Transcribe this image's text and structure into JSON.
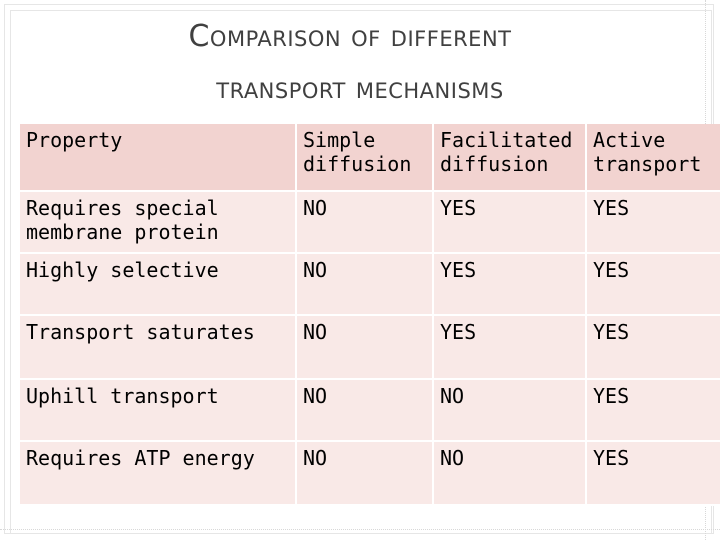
{
  "slide": {
    "title_line1": "Comparison of different",
    "title_line2": "transport mechanisms"
  },
  "table": {
    "headers": [
      "Property",
      "Simple diffusion",
      "Facilitated diffusion",
      "Active transport"
    ],
    "rows": [
      [
        "Requires special membrane protein",
        "NO",
        "YES",
        "YES"
      ],
      [
        "Highly selective",
        "NO",
        "YES",
        "YES"
      ],
      [
        "Transport saturates",
        "NO",
        "YES",
        "YES"
      ],
      [
        "Uphill transport",
        "NO",
        "NO",
        "YES"
      ],
      [
        "Requires ATP energy",
        "NO",
        "NO",
        "YES"
      ]
    ]
  },
  "colors": {
    "header_bg": "#f2d3d0",
    "row_bg": "#f9e9e7",
    "title_text": "#404040"
  }
}
